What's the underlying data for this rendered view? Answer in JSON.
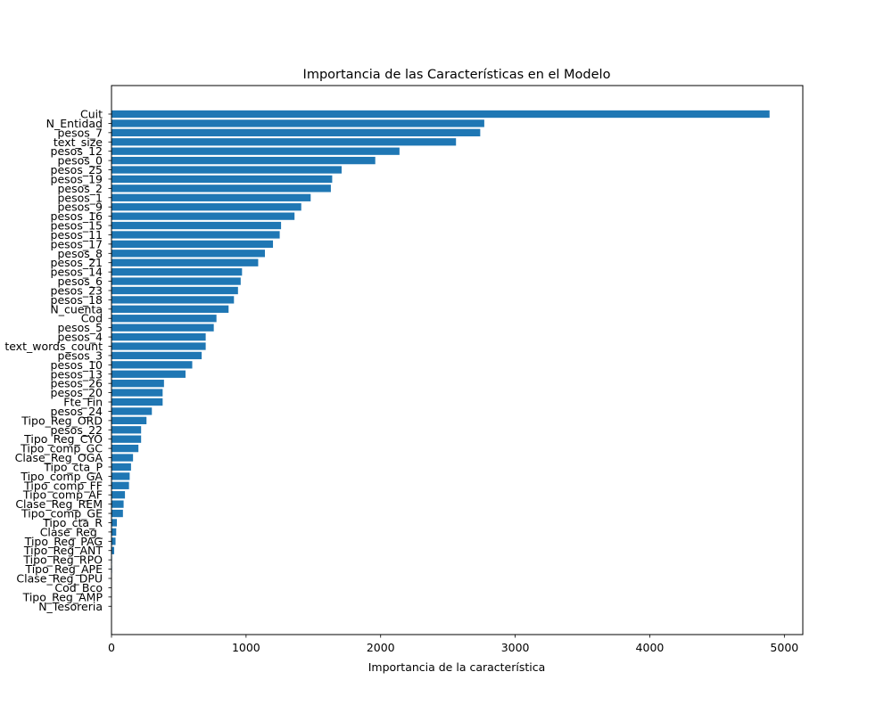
{
  "chart_data": {
    "type": "bar",
    "orientation": "horizontal",
    "title": "Importancia de las Características en el Modelo",
    "xlabel": "Importancia de la característica",
    "ylabel": "",
    "xlim": [
      0,
      5137
    ],
    "xticks": [
      0,
      1000,
      2000,
      3000,
      4000,
      5000
    ],
    "grid": false,
    "bar_color": "#1f77b4",
    "categories": [
      "Cuit",
      "N_Entidad",
      "pesos_7",
      "text_size",
      "pesos_12",
      "pesos_0",
      "pesos_25",
      "pesos_19",
      "pesos_2",
      "pesos_1",
      "pesos_9",
      "pesos_16",
      "pesos_15",
      "pesos_11",
      "pesos_17",
      "pesos_8",
      "pesos_21",
      "pesos_14",
      "pesos_6",
      "pesos_23",
      "pesos_18",
      "N_cuenta",
      "Cod",
      "pesos_5",
      "pesos_4",
      "text_words_count",
      "pesos_3",
      "pesos_10",
      "pesos_13",
      "pesos_26",
      "pesos_20",
      "Fte_Fin",
      "pesos_24",
      "Tipo_Reg_ORD",
      "pesos_22",
      "Tipo_Reg_CYO",
      "Tipo_comp_GC",
      "Clase_Reg_OGA",
      "Tipo_cta_P",
      "Tipo_comp_GA",
      "Tipo_comp_FF",
      "Tipo_comp_AF",
      "Clase_Reg_REM",
      "Tipo_comp_GE",
      "Tipo_cta_R",
      "Clase_Reg_",
      "Tipo_Reg_PAG",
      "Tipo_Reg_ANT",
      "Tipo_Reg_RPO",
      "Tipo_Reg_APE",
      "Clase_Reg_DPU",
      "Cod_Bco",
      "Tipo_Reg_AMP",
      "N_Tesoreria"
    ],
    "values": [
      4890,
      2770,
      2740,
      2560,
      2140,
      1960,
      1710,
      1640,
      1630,
      1480,
      1410,
      1360,
      1260,
      1250,
      1200,
      1140,
      1090,
      970,
      960,
      940,
      910,
      870,
      780,
      760,
      700,
      700,
      670,
      600,
      550,
      390,
      380,
      380,
      300,
      260,
      220,
      220,
      200,
      160,
      145,
      135,
      130,
      100,
      90,
      85,
      40,
      35,
      30,
      20,
      4,
      4,
      3,
      2,
      2,
      1
    ]
  }
}
